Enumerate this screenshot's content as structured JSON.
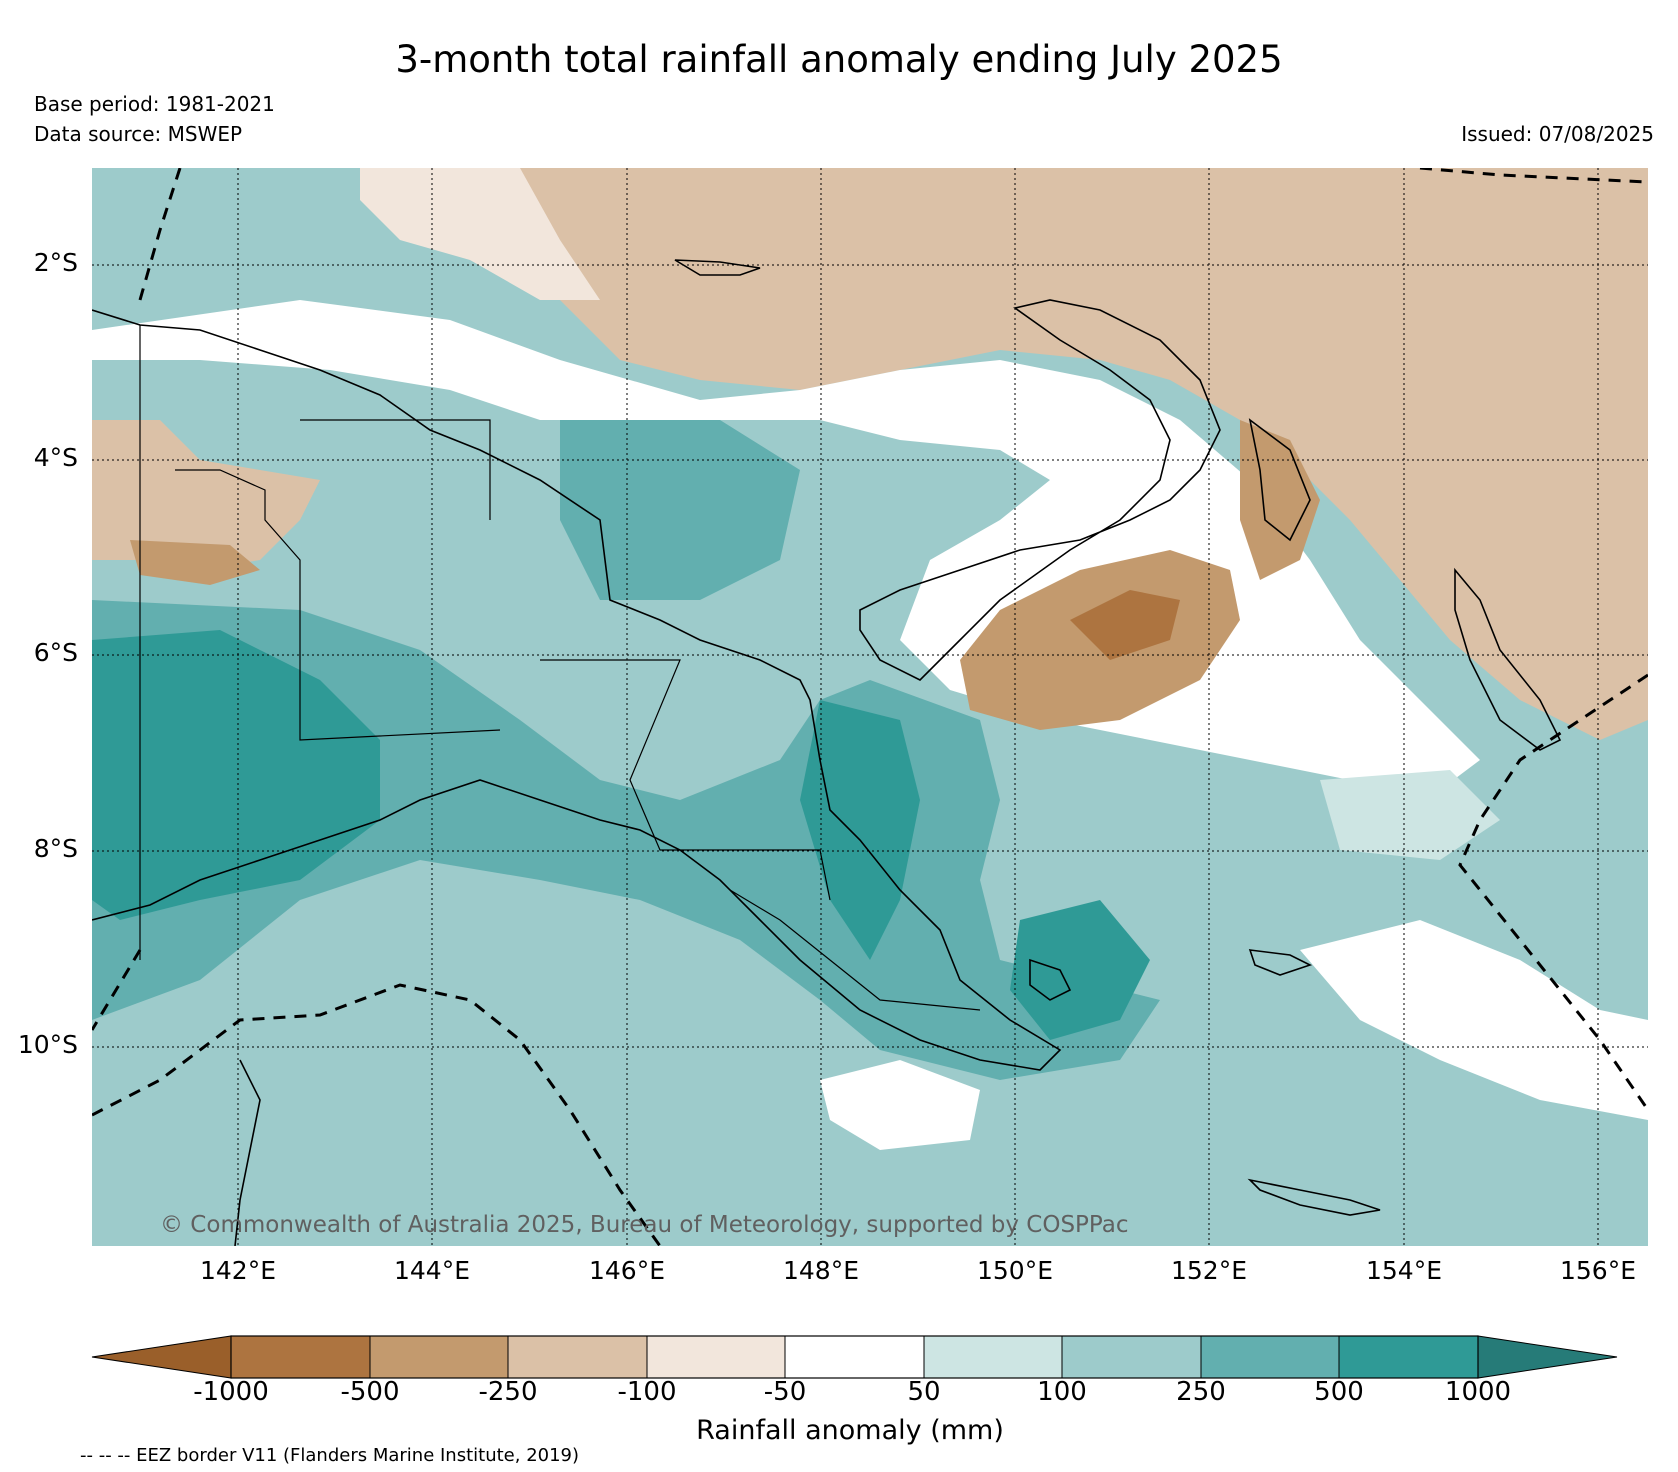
{
  "title": "3-month total rainfall anomaly ending July 2025",
  "base_period": "Base period: 1981-2021",
  "data_source": "Data source: MSWEP",
  "issued": "Issued: 07/08/2025",
  "copyright": "© Commonwealth of Australia 2025, Bureau of Meteorology, supported by COSPPac",
  "eez_note": "-- -- -- EEZ border V11 (Flanders Marine Institute, 2019)",
  "map": {
    "lat_labels": [
      "2°S",
      "4°S",
      "6°S",
      "8°S",
      "10°S"
    ],
    "lon_labels": [
      "142°E",
      "144°E",
      "146°E",
      "148°E",
      "150°E",
      "152°E",
      "154°E",
      "156°E"
    ]
  },
  "colorbar": {
    "label": "Rainfall anomaly (mm)",
    "ticks": [
      "-1000",
      "-500",
      "-250",
      "-100",
      "-50",
      "50",
      "100",
      "250",
      "500",
      "1000"
    ],
    "colors": {
      "below_1000": "#9a5f2a",
      "n1000_n500": "#ad7440",
      "n500_n250": "#c39a6e",
      "n250_n100": "#dbc1a7",
      "n100_n50": "#f2e6dc",
      "n50_50": "#ffffff",
      "p50_100": "#cde5e3",
      "p100_250": "#9dcbcb",
      "p250_500": "#62afaf",
      "p500_1000": "#2f9a96",
      "above_1000": "#267b78"
    }
  }
}
